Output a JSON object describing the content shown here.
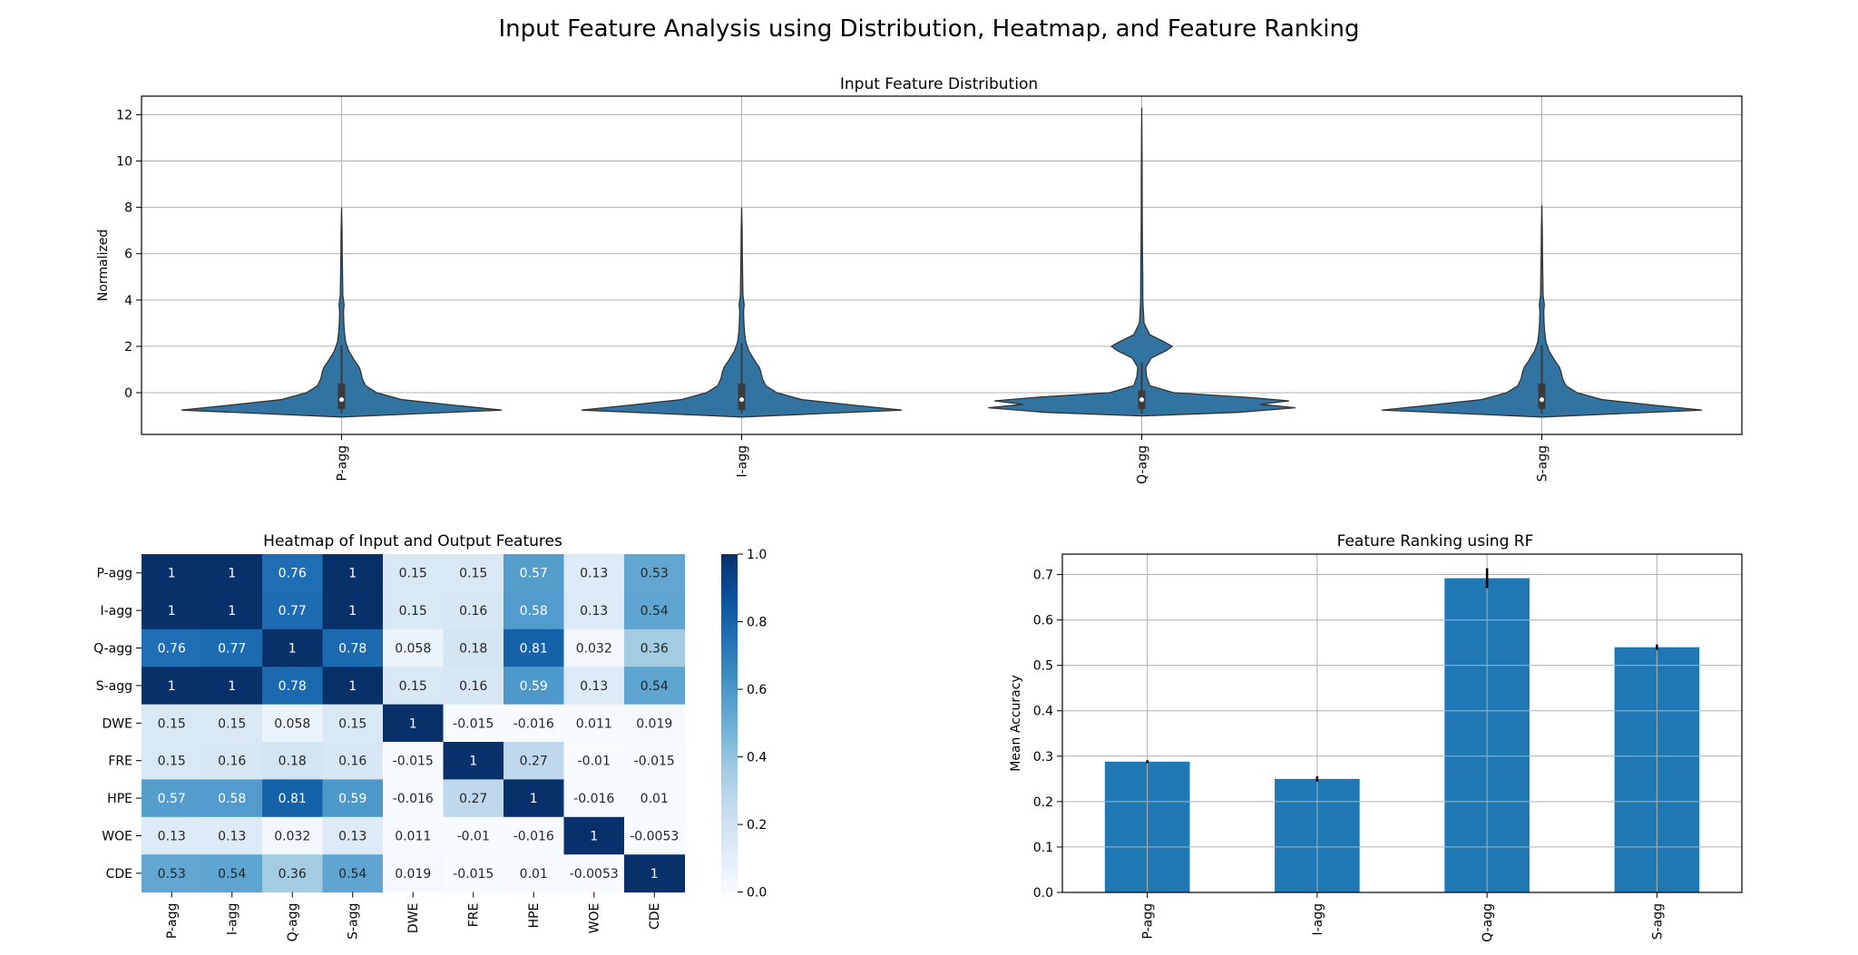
{
  "suptitle": "Input Feature Analysis using Distribution, Heatmap, and Feature Ranking",
  "colors": {
    "bar": "#1f77b4",
    "violin_fill": "#3274a1",
    "violin_edge": "#333333",
    "grid": "#b0b0b0"
  },
  "chart_data": [
    {
      "type": "violin",
      "title": "Input Feature Distribution",
      "ylabel": "Normalized",
      "xlabel": "",
      "categories": [
        "P-agg",
        "I-agg",
        "Q-agg",
        "S-agg"
      ],
      "ylim": [
        -1.8,
        12.8
      ],
      "yticks": [
        0,
        2,
        4,
        6,
        8,
        10,
        12
      ],
      "grid": true,
      "distributions": [
        {
          "name": "P-agg",
          "min": -0.9,
          "q1": -0.7,
          "median": -0.3,
          "q3": 0.4,
          "max": 8.0,
          "density": [
            [
              -1.05,
              0.0
            ],
            [
              -0.9,
              0.5
            ],
            [
              -0.75,
              1.0
            ],
            [
              -0.55,
              0.72
            ],
            [
              -0.3,
              0.38
            ],
            [
              0.0,
              0.22
            ],
            [
              0.3,
              0.15
            ],
            [
              0.6,
              0.13
            ],
            [
              0.9,
              0.12
            ],
            [
              1.1,
              0.11
            ],
            [
              1.4,
              0.08
            ],
            [
              1.8,
              0.045
            ],
            [
              2.2,
              0.025
            ],
            [
              2.6,
              0.018
            ],
            [
              3.0,
              0.014
            ],
            [
              3.5,
              0.012
            ],
            [
              3.8,
              0.016
            ],
            [
              4.2,
              0.008
            ],
            [
              5.0,
              0.006
            ],
            [
              6.0,
              0.004
            ],
            [
              7.0,
              0.003
            ],
            [
              8.0,
              0.0
            ]
          ]
        },
        {
          "name": "I-agg",
          "min": -0.9,
          "q1": -0.75,
          "median": -0.3,
          "q3": 0.4,
          "max": 8.0,
          "density": [
            [
              -1.05,
              0.0
            ],
            [
              -0.9,
              0.5
            ],
            [
              -0.75,
              1.0
            ],
            [
              -0.55,
              0.72
            ],
            [
              -0.3,
              0.38
            ],
            [
              0.0,
              0.22
            ],
            [
              0.3,
              0.15
            ],
            [
              0.6,
              0.13
            ],
            [
              0.9,
              0.12
            ],
            [
              1.1,
              0.11
            ],
            [
              1.4,
              0.08
            ],
            [
              1.8,
              0.045
            ],
            [
              2.2,
              0.025
            ],
            [
              2.6,
              0.018
            ],
            [
              3.0,
              0.014
            ],
            [
              3.5,
              0.012
            ],
            [
              3.8,
              0.016
            ],
            [
              4.2,
              0.008
            ],
            [
              5.0,
              0.006
            ],
            [
              6.0,
              0.004
            ],
            [
              7.0,
              0.003
            ],
            [
              8.0,
              0.0
            ]
          ]
        },
        {
          "name": "Q-agg",
          "min": -0.9,
          "q1": -0.7,
          "median": -0.3,
          "q3": 0.1,
          "max": 12.3,
          "density": [
            [
              -1.0,
              0.0
            ],
            [
              -0.85,
              0.6
            ],
            [
              -0.65,
              0.96
            ],
            [
              -0.5,
              0.74
            ],
            [
              -0.35,
              0.92
            ],
            [
              -0.2,
              0.66
            ],
            [
              0.0,
              0.2
            ],
            [
              0.3,
              0.05
            ],
            [
              0.7,
              0.03
            ],
            [
              1.1,
              0.025
            ],
            [
              1.5,
              0.06
            ],
            [
              1.8,
              0.15
            ],
            [
              2.0,
              0.19
            ],
            [
              2.2,
              0.14
            ],
            [
              2.5,
              0.05
            ],
            [
              3.0,
              0.015
            ],
            [
              3.5,
              0.01
            ],
            [
              4.0,
              0.007
            ],
            [
              5.0,
              0.006
            ],
            [
              6.5,
              0.004
            ],
            [
              8.0,
              0.003
            ],
            [
              10.0,
              0.002
            ],
            [
              12.3,
              0.0
            ]
          ]
        },
        {
          "name": "S-agg",
          "min": -0.9,
          "q1": -0.7,
          "median": -0.3,
          "q3": 0.4,
          "max": 8.1,
          "density": [
            [
              -1.05,
              0.0
            ],
            [
              -0.9,
              0.5
            ],
            [
              -0.75,
              1.0
            ],
            [
              -0.55,
              0.72
            ],
            [
              -0.3,
              0.38
            ],
            [
              0.0,
              0.22
            ],
            [
              0.3,
              0.15
            ],
            [
              0.6,
              0.13
            ],
            [
              0.9,
              0.12
            ],
            [
              1.1,
              0.11
            ],
            [
              1.4,
              0.08
            ],
            [
              1.8,
              0.045
            ],
            [
              2.2,
              0.025
            ],
            [
              2.6,
              0.018
            ],
            [
              3.0,
              0.014
            ],
            [
              3.5,
              0.012
            ],
            [
              3.8,
              0.016
            ],
            [
              4.2,
              0.008
            ],
            [
              5.0,
              0.006
            ],
            [
              6.0,
              0.004
            ],
            [
              7.0,
              0.003
            ],
            [
              8.1,
              0.0
            ]
          ]
        }
      ]
    },
    {
      "type": "heatmap",
      "title": "Heatmap of Input and Output Features",
      "rows": [
        "P-agg",
        "I-agg",
        "Q-agg",
        "S-agg",
        "DWE",
        "FRE",
        "HPE",
        "WOE",
        "CDE"
      ],
      "cols": [
        "P-agg",
        "I-agg",
        "Q-agg",
        "S-agg",
        "DWE",
        "FRE",
        "HPE",
        "WOE",
        "CDE"
      ],
      "values": [
        [
          1,
          1,
          0.76,
          1,
          0.15,
          0.15,
          0.57,
          0.13,
          0.53
        ],
        [
          1,
          1,
          0.77,
          1,
          0.15,
          0.16,
          0.58,
          0.13,
          0.54
        ],
        [
          0.76,
          0.77,
          1,
          0.78,
          0.058,
          0.18,
          0.81,
          0.032,
          0.36
        ],
        [
          1,
          1,
          0.78,
          1,
          0.15,
          0.16,
          0.59,
          0.13,
          0.54
        ],
        [
          0.15,
          0.15,
          0.058,
          0.15,
          1,
          -0.015,
          -0.016,
          0.011,
          0.019
        ],
        [
          0.15,
          0.16,
          0.18,
          0.16,
          -0.015,
          1,
          0.27,
          -0.01,
          -0.015
        ],
        [
          0.57,
          0.58,
          0.81,
          0.59,
          -0.016,
          0.27,
          1,
          -0.016,
          0.01
        ],
        [
          0.13,
          0.13,
          0.032,
          0.13,
          0.011,
          -0.01,
          -0.016,
          1,
          -0.0053
        ],
        [
          0.53,
          0.54,
          0.36,
          0.54,
          0.019,
          -0.015,
          0.01,
          -0.0053,
          1
        ]
      ],
      "labels": [
        [
          "1",
          "1",
          "0.76",
          "1",
          "0.15",
          "0.15",
          "0.57",
          "0.13",
          "0.53"
        ],
        [
          "1",
          "1",
          "0.77",
          "1",
          "0.15",
          "0.16",
          "0.58",
          "0.13",
          "0.54"
        ],
        [
          "0.76",
          "0.77",
          "1",
          "0.78",
          "0.058",
          "0.18",
          "0.81",
          "0.032",
          "0.36"
        ],
        [
          "1",
          "1",
          "0.78",
          "1",
          "0.15",
          "0.16",
          "0.59",
          "0.13",
          "0.54"
        ],
        [
          "0.15",
          "0.15",
          "0.058",
          "0.15",
          "1",
          "-0.015",
          "-0.016",
          "0.011",
          "0.019"
        ],
        [
          "0.15",
          "0.16",
          "0.18",
          "0.16",
          "-0.015",
          "1",
          "0.27",
          "-0.01",
          "-0.015"
        ],
        [
          "0.57",
          "0.58",
          "0.81",
          "0.59",
          "-0.016",
          "0.27",
          "1",
          "-0.016",
          "0.01"
        ],
        [
          "0.13",
          "0.13",
          "0.032",
          "0.13",
          "0.011",
          "-0.01",
          "-0.016",
          "1",
          "-0.0053"
        ],
        [
          "0.53",
          "0.54",
          "0.36",
          "0.54",
          "0.019",
          "-0.015",
          "0.01",
          "-0.0053",
          "1"
        ]
      ],
      "colormap": "Blues",
      "vmin": 0.0,
      "vmax": 1.0,
      "colorbar_ticks": [
        "0.0",
        "0.2",
        "0.4",
        "0.6",
        "0.8",
        "1.0"
      ]
    },
    {
      "type": "bar",
      "title": "Feature Ranking using RF",
      "ylabel": "Mean Accuracy",
      "xlabel": "",
      "categories": [
        "P-agg",
        "I-agg",
        "Q-agg",
        "S-agg"
      ],
      "values": [
        0.288,
        0.25,
        0.692,
        0.54
      ],
      "errors": [
        0.003,
        0.006,
        0.022,
        0.006
      ],
      "ylim": [
        0,
        0.745
      ],
      "yticks": [
        "0.0",
        "0.1",
        "0.2",
        "0.3",
        "0.4",
        "0.5",
        "0.6",
        "0.7"
      ],
      "grid": true
    }
  ]
}
